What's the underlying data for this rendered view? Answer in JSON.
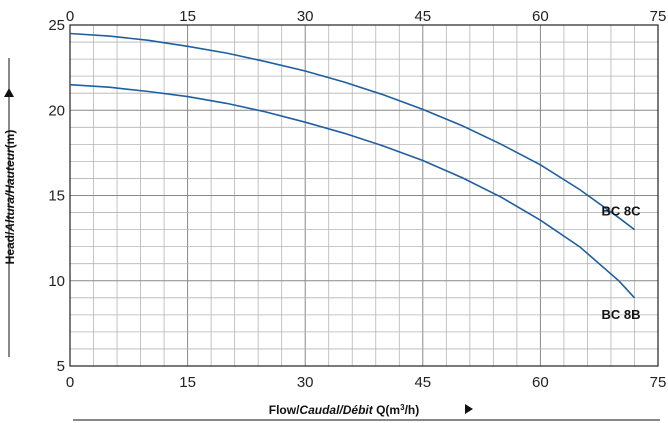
{
  "chart_data": {
    "type": "line",
    "xlabel": {
      "parts": [
        {
          "text": "Flow/",
          "italic": false
        },
        {
          "text": "Caudal/Débit",
          "italic": true
        },
        {
          "text": " Q(m",
          "italic": false
        },
        {
          "text": "3",
          "sup": true
        },
        {
          "text": "/h)",
          "italic": false
        }
      ]
    },
    "ylabel": {
      "parts": [
        {
          "text": "Head/",
          "italic": false
        },
        {
          "text": "Altura/Hauteur",
          "italic": true
        },
        {
          "text": "(m)",
          "italic": false
        }
      ]
    },
    "xlim": [
      0,
      75
    ],
    "ylim": [
      5,
      25
    ],
    "x_ticks": [
      0,
      15,
      30,
      45,
      60,
      75
    ],
    "x_ticks_top": [
      0,
      15,
      30,
      45,
      60,
      75
    ],
    "y_ticks": [
      5,
      10,
      15,
      20,
      25
    ],
    "x_minor_step": 3,
    "y_minor_step": 1,
    "grid": true,
    "series": [
      {
        "name": "BC 8C",
        "color": "#1f5fa0",
        "x": [
          0,
          5,
          10,
          15,
          20,
          25,
          30,
          35,
          40,
          45,
          50,
          55,
          60,
          65,
          70,
          72
        ],
        "y": [
          24.5,
          24.35,
          24.1,
          23.75,
          23.35,
          22.85,
          22.3,
          21.65,
          20.9,
          20.05,
          19.1,
          18.0,
          16.8,
          15.35,
          13.7,
          13.0
        ]
      },
      {
        "name": "BC 8B",
        "color": "#1f5fa0",
        "x": [
          0,
          5,
          10,
          15,
          20,
          25,
          30,
          35,
          40,
          45,
          50,
          55,
          60,
          65,
          70,
          72
        ],
        "y": [
          21.5,
          21.35,
          21.1,
          20.8,
          20.4,
          19.9,
          19.3,
          18.65,
          17.9,
          17.05,
          16.05,
          14.9,
          13.55,
          12.0,
          10.0,
          9.0
        ]
      }
    ]
  }
}
